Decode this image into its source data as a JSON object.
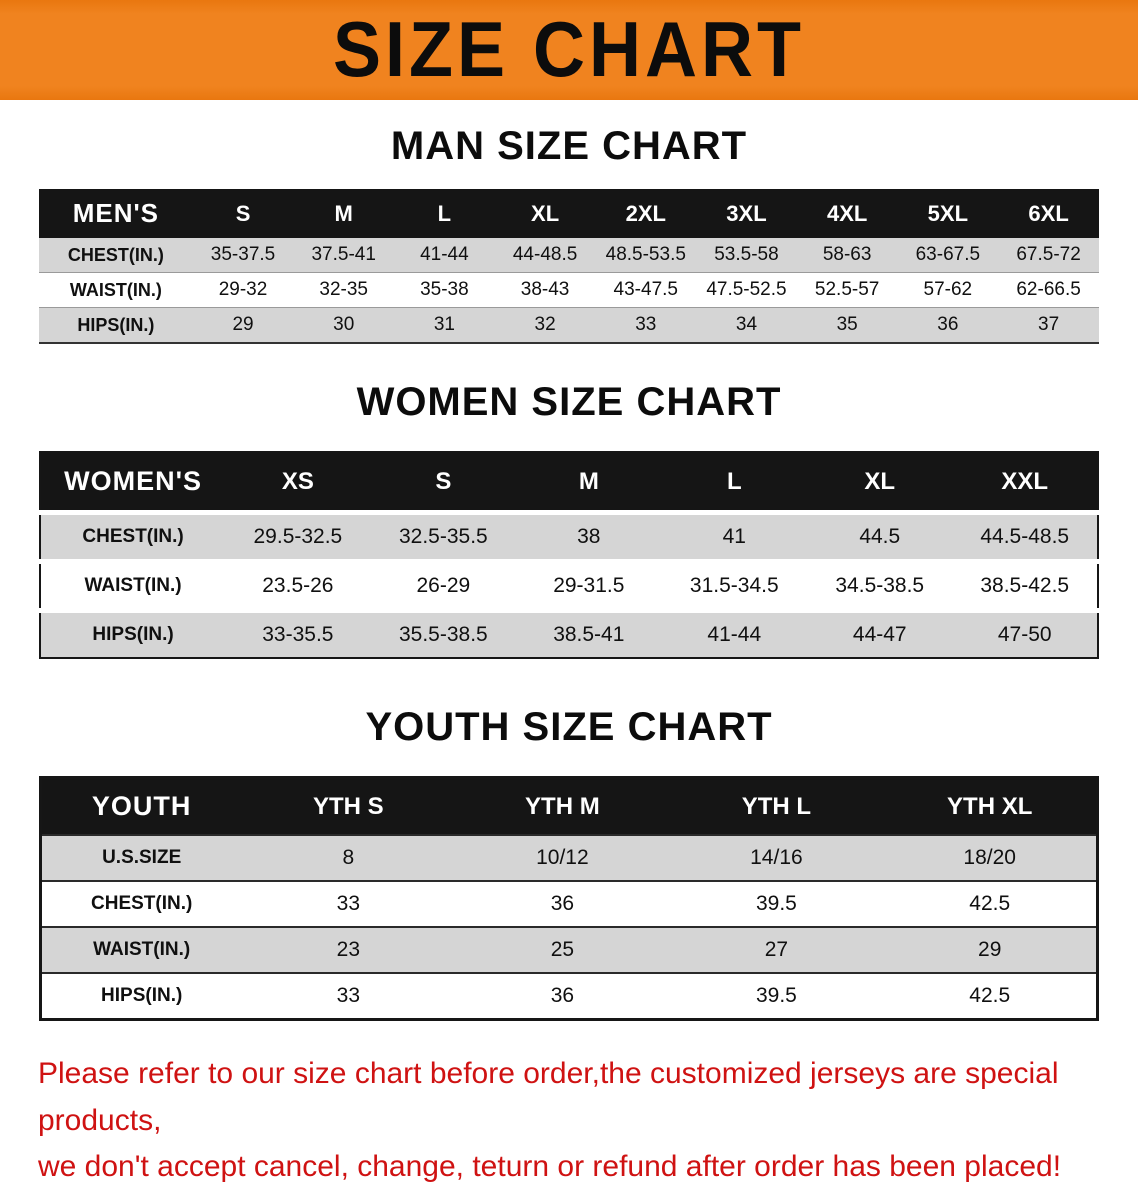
{
  "banner": {
    "title": "SIZE CHART"
  },
  "colors": {
    "banner-orange": "#f0831f",
    "bar-black": "#151515",
    "row-gray": "#d5d5d5",
    "warn-red": "#cf1212"
  },
  "sections": [
    {
      "title": "MAN SIZE CHART",
      "header": [
        "MEN'S",
        "S",
        "M",
        "L",
        "XL",
        "2XL",
        "3XL",
        "4XL",
        "5XL",
        "6XL"
      ],
      "rows": [
        [
          "CHEST(IN.)",
          "35-37.5",
          "37.5-41",
          "41-44",
          "44-48.5",
          "48.5-53.5",
          "53.5-58",
          "58-63",
          "63-67.5",
          "67.5-72"
        ],
        [
          "WAIST(IN.)",
          "29-32",
          "32-35",
          "35-38",
          "38-43",
          "43-47.5",
          "47.5-52.5",
          "52.5-57",
          "57-62",
          "62-66.5"
        ],
        [
          "HIPS(IN.)",
          "29",
          "30",
          "31",
          "32",
          "33",
          "34",
          "35",
          "36",
          "37"
        ]
      ]
    },
    {
      "title": "WOMEN SIZE CHART",
      "header": [
        "WOMEN'S",
        "XS",
        "S",
        "M",
        "L",
        "XL",
        "XXL"
      ],
      "rows": [
        [
          "CHEST(IN.)",
          "29.5-32.5",
          "32.5-35.5",
          "38",
          "41",
          "44.5",
          "44.5-48.5"
        ],
        [
          "WAIST(IN.)",
          "23.5-26",
          "26-29",
          "29-31.5",
          "31.5-34.5",
          "34.5-38.5",
          "38.5-42.5"
        ],
        [
          "HIPS(IN.)",
          "33-35.5",
          "35.5-38.5",
          "38.5-41",
          "41-44",
          "44-47",
          "47-50"
        ]
      ]
    },
    {
      "title": "YOUTH SIZE CHART",
      "header": [
        "YOUTH",
        "YTH S",
        "YTH M",
        "YTH L",
        "YTH XL"
      ],
      "rows": [
        [
          "U.S.SIZE",
          "8",
          "10/12",
          "14/16",
          "18/20"
        ],
        [
          "CHEST(IN.)",
          "33",
          "36",
          "39.5",
          "42.5"
        ],
        [
          "WAIST(IN.)",
          "23",
          "25",
          "27",
          "29"
        ],
        [
          "HIPS(IN.)",
          "33",
          "36",
          "39.5",
          "42.5"
        ]
      ]
    }
  ],
  "footer": {
    "line1": "Please refer to our size chart before order,the customized jerseys are special products,",
    "line2": "we don't accept cancel, change, teturn or refund after order has been placed!"
  }
}
